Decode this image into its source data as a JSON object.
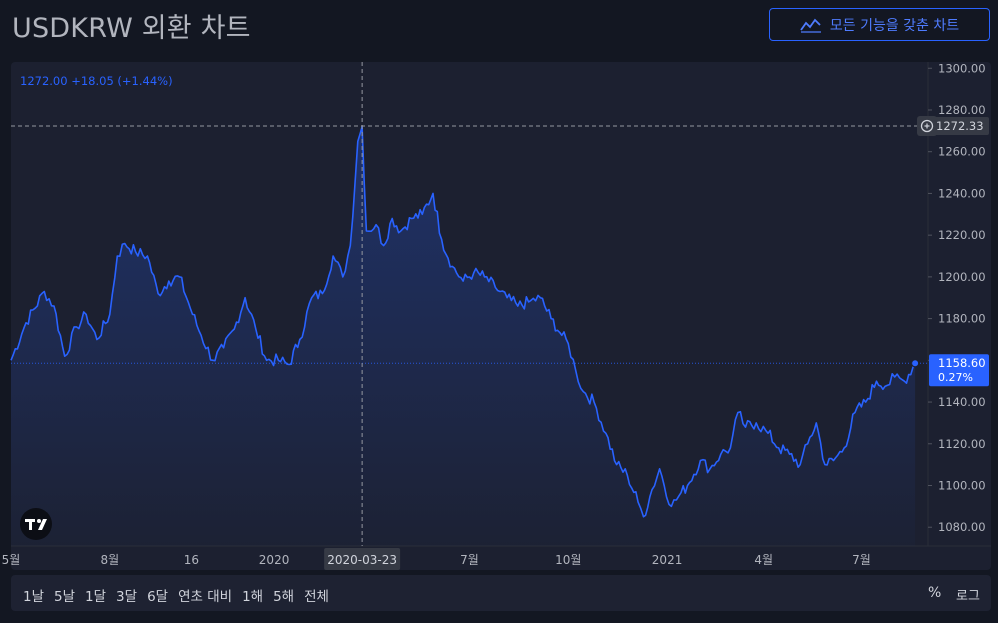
{
  "header": {
    "title": "USDKRW 외환 차트",
    "full_chart_button": "모든 기능을 갖춘 차트",
    "full_chart_icon": "chart-line-icon"
  },
  "legend": {
    "value": "1272.00",
    "change": "+18.05",
    "change_pct": "(+1.44%)"
  },
  "crosshair": {
    "date_label": "2020-03-23",
    "price_label": "1272.33"
  },
  "last_price": {
    "value": "1158.60",
    "change_pct": "0.27%"
  },
  "range_buttons": [
    "1날",
    "5날",
    "1달",
    "3달",
    "6달",
    "연초 대비",
    "1해",
    "5해",
    "전체"
  ],
  "scale_buttons": {
    "percent": "%",
    "log": "로그"
  },
  "colors": {
    "background": "#131722",
    "line": "#2962ff",
    "accent": "#2962ff"
  },
  "chart_data": {
    "type": "area",
    "x_tick_labels": [
      "5월",
      "8월",
      "16",
      "2020",
      "7월",
      "10월",
      "2021",
      "4월",
      "7월"
    ],
    "y_tick_labels": [
      "1300.00",
      "1280.00",
      "1260.00",
      "1240.00",
      "1220.00",
      "1200.00",
      "1180.00",
      "1160.00",
      "1140.00",
      "1120.00",
      "1100.00",
      "1080.00"
    ],
    "ylim": [
      1071,
      1303
    ],
    "xlim": [
      "2019-05-01",
      "2021-09-01"
    ],
    "series": [
      {
        "values": [
          [
            "2019-05-01",
            1160
          ],
          [
            "2019-05-15",
            1178
          ],
          [
            "2019-06-01",
            1193
          ],
          [
            "2019-06-10",
            1186
          ],
          [
            "2019-06-20",
            1162
          ],
          [
            "2019-07-01",
            1176
          ],
          [
            "2019-07-10",
            1182
          ],
          [
            "2019-07-20",
            1170
          ],
          [
            "2019-08-01",
            1182
          ],
          [
            "2019-08-08",
            1210
          ],
          [
            "2019-08-15",
            1216
          ],
          [
            "2019-08-25",
            1212
          ],
          [
            "2019-09-05",
            1210
          ],
          [
            "2019-09-15",
            1192
          ],
          [
            "2019-09-25",
            1198
          ],
          [
            "2019-10-05",
            1200
          ],
          [
            "2019-10-15",
            1185
          ],
          [
            "2019-10-25",
            1172
          ],
          [
            "2019-11-05",
            1160
          ],
          [
            "2019-11-15",
            1166
          ],
          [
            "2019-11-25",
            1175
          ],
          [
            "2019-12-05",
            1190
          ],
          [
            "2019-12-15",
            1175
          ],
          [
            "2019-12-25",
            1160
          ],
          [
            "2020-01-05",
            1160
          ],
          [
            "2020-01-15",
            1158
          ],
          [
            "2020-01-25",
            1170
          ],
          [
            "2020-02-05",
            1190
          ],
          [
            "2020-02-15",
            1192
          ],
          [
            "2020-02-25",
            1210
          ],
          [
            "2020-03-05",
            1200
          ],
          [
            "2020-03-12",
            1215
          ],
          [
            "2020-03-19",
            1265
          ],
          [
            "2020-03-23",
            1272
          ],
          [
            "2020-03-27",
            1222
          ],
          [
            "2020-04-05",
            1225
          ],
          [
            "2020-04-12",
            1215
          ],
          [
            "2020-04-20",
            1228
          ],
          [
            "2020-04-28",
            1222
          ],
          [
            "2020-05-08",
            1228
          ],
          [
            "2020-05-18",
            1230
          ],
          [
            "2020-05-28",
            1240
          ],
          [
            "2020-06-05",
            1218
          ],
          [
            "2020-06-15",
            1205
          ],
          [
            "2020-06-25",
            1198
          ],
          [
            "2020-07-05",
            1202
          ],
          [
            "2020-07-15",
            1200
          ],
          [
            "2020-07-25",
            1195
          ],
          [
            "2020-08-05",
            1190
          ],
          [
            "2020-08-15",
            1186
          ],
          [
            "2020-08-25",
            1188
          ],
          [
            "2020-09-05",
            1190
          ],
          [
            "2020-09-15",
            1180
          ],
          [
            "2020-09-25",
            1172
          ],
          [
            "2020-10-01",
            1168
          ],
          [
            "2020-10-08",
            1155
          ],
          [
            "2020-10-15",
            1145
          ],
          [
            "2020-10-25",
            1140
          ],
          [
            "2020-11-05",
            1125
          ],
          [
            "2020-11-15",
            1110
          ],
          [
            "2020-11-25",
            1105
          ],
          [
            "2020-12-05",
            1092
          ],
          [
            "2020-12-10",
            1085
          ],
          [
            "2020-12-18",
            1098
          ],
          [
            "2020-12-25",
            1108
          ],
          [
            "2021-01-05",
            1090
          ],
          [
            "2021-01-12",
            1095
          ],
          [
            "2021-01-20",
            1100
          ],
          [
            "2021-02-01",
            1112
          ],
          [
            "2021-02-10",
            1108
          ],
          [
            "2021-02-20",
            1115
          ],
          [
            "2021-03-01",
            1118
          ],
          [
            "2021-03-08",
            1135
          ],
          [
            "2021-03-15",
            1128
          ],
          [
            "2021-03-25",
            1130
          ],
          [
            "2021-04-05",
            1125
          ],
          [
            "2021-04-15",
            1118
          ],
          [
            "2021-04-25",
            1115
          ],
          [
            "2021-05-05",
            1110
          ],
          [
            "2021-05-12",
            1120
          ],
          [
            "2021-05-20",
            1130
          ],
          [
            "2021-05-28",
            1110
          ],
          [
            "2021-06-05",
            1112
          ],
          [
            "2021-06-15",
            1118
          ],
          [
            "2021-06-25",
            1135
          ],
          [
            "2021-07-05",
            1140
          ],
          [
            "2021-07-15",
            1150
          ],
          [
            "2021-07-25",
            1148
          ],
          [
            "2021-08-01",
            1152
          ],
          [
            "2021-08-10",
            1150
          ],
          [
            "2021-08-20",
            1158.6
          ]
        ]
      }
    ]
  }
}
